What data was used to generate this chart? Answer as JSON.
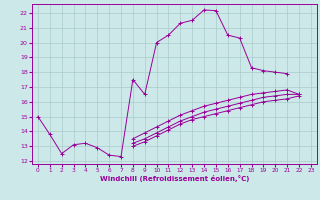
{
  "background_color": "#cce8e8",
  "grid_color": "#aacccc",
  "line_color": "#990099",
  "marker": "+",
  "xlabel": "Windchill (Refroidissement éolien,°C)",
  "xlim": [
    -0.5,
    23.5
  ],
  "ylim": [
    11.8,
    22.6
  ],
  "yticks": [
    12,
    13,
    14,
    15,
    16,
    17,
    18,
    19,
    20,
    21,
    22
  ],
  "xticks": [
    0,
    1,
    2,
    3,
    4,
    5,
    6,
    7,
    8,
    9,
    10,
    11,
    12,
    13,
    14,
    15,
    16,
    17,
    18,
    19,
    20,
    21,
    22,
    23
  ],
  "curves": [
    {
      "x": [
        0,
        1,
        2,
        3,
        4,
        5,
        6,
        7,
        8,
        9,
        10,
        11,
        12,
        13,
        14,
        15,
        16,
        17,
        18,
        19,
        20,
        21
      ],
      "y": [
        15.0,
        13.8,
        12.5,
        13.1,
        13.2,
        12.9,
        12.4,
        12.3,
        17.5,
        16.5,
        20.0,
        20.5,
        21.3,
        21.5,
        22.2,
        22.15,
        20.5,
        20.3,
        18.3,
        18.1,
        18.0,
        17.9
      ]
    },
    {
      "x": [
        8,
        9,
        10,
        11,
        12,
        13,
        14,
        15,
        16,
        17,
        18,
        19,
        20,
        21,
        22
      ],
      "y": [
        13.5,
        13.9,
        14.3,
        14.7,
        15.1,
        15.4,
        15.7,
        15.9,
        16.1,
        16.3,
        16.5,
        16.6,
        16.7,
        16.8,
        16.5
      ]
    },
    {
      "x": [
        8,
        9,
        10,
        11,
        12,
        13,
        14,
        15,
        16,
        17,
        18,
        19,
        20,
        21,
        22
      ],
      "y": [
        13.0,
        13.3,
        13.7,
        14.1,
        14.5,
        14.8,
        15.0,
        15.2,
        15.4,
        15.6,
        15.8,
        16.0,
        16.1,
        16.2,
        16.4
      ]
    },
    {
      "x": [
        8,
        9,
        10,
        11,
        12,
        13,
        14,
        15,
        16,
        17,
        18,
        19,
        20,
        21,
        22
      ],
      "y": [
        13.2,
        13.5,
        13.9,
        14.3,
        14.7,
        15.0,
        15.3,
        15.5,
        15.7,
        15.9,
        16.1,
        16.3,
        16.4,
        16.5,
        16.5
      ]
    }
  ]
}
